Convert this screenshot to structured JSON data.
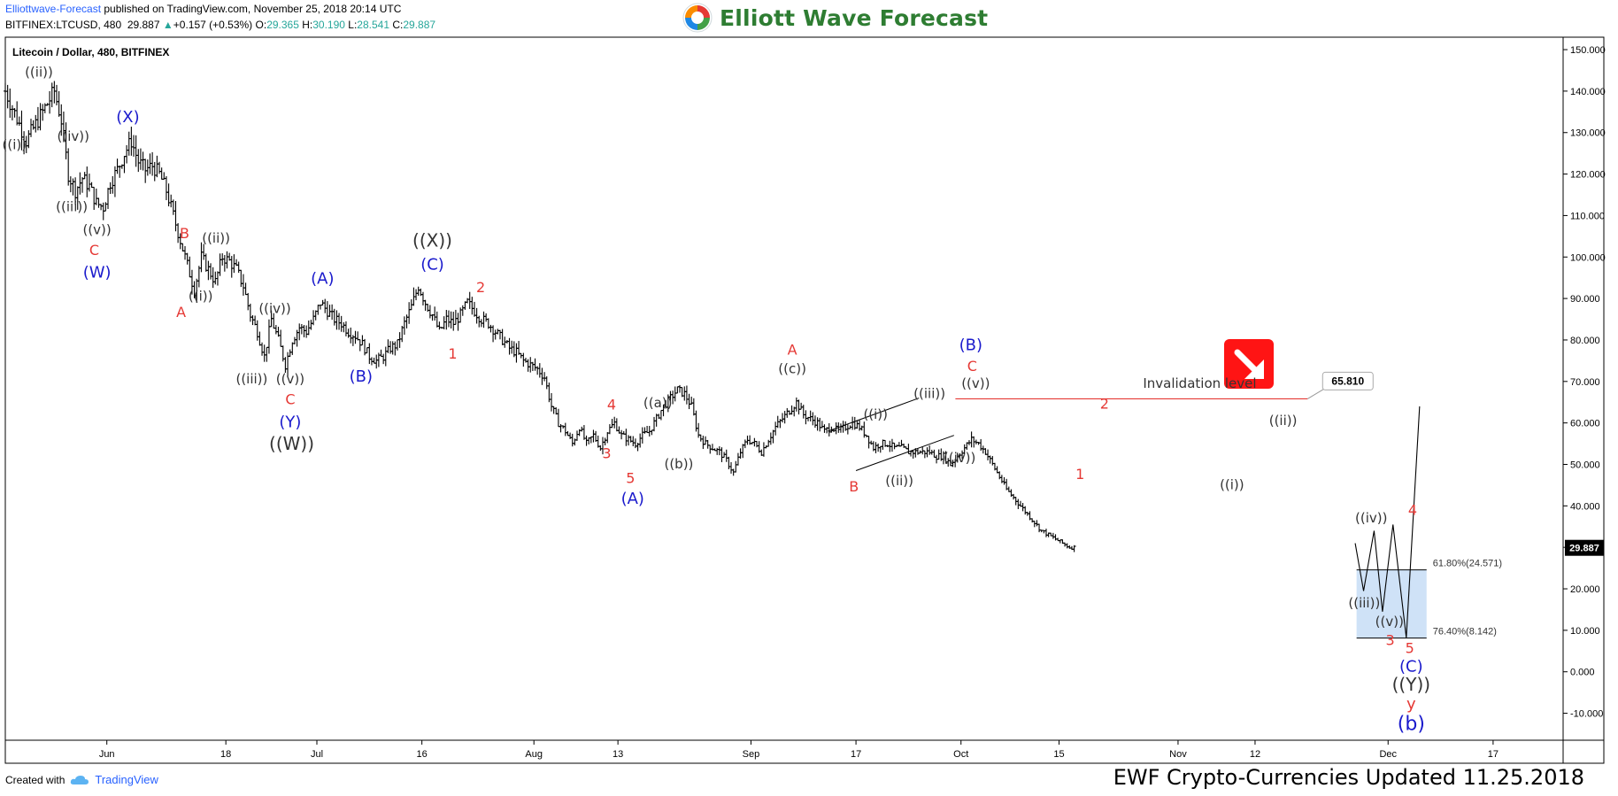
{
  "header": {
    "author": "Elliottwave-Forecast",
    "published": " published on TradingView.com, November 25, 2018 20:14 UTC",
    "symbol_line": "BITFINEX:LTCUSD, 480",
    "last": "29.887",
    "change_arrow": "▲",
    "change": "+0.157 (+0.53%)",
    "o_label": "O:",
    "o_val": "29.365",
    "h_label": "H:",
    "h_val": "30.190",
    "l_label": "L:",
    "l_val": "28.541",
    "c_label": "C:",
    "c_val": "29.887"
  },
  "logo": {
    "text": "Elliott Wave Forecast",
    "colors": [
      "#e53935",
      "#fb8c00",
      "#43a047",
      "#1e88e5"
    ]
  },
  "footer": {
    "created_with": "Created with",
    "brand": "TradingView",
    "update": "EWF Crypto-Currencies Updated 11.25.2018"
  },
  "chart_data": {
    "type": "candlestick",
    "title": "Litecoin / Dollar, 480, BITFINEX",
    "y_ticks": [
      150,
      140,
      130,
      120,
      110,
      100,
      90,
      80,
      70,
      60,
      50,
      40,
      30,
      20,
      10,
      0,
      -10
    ],
    "y_tick_labels": [
      "150.000",
      "140.000",
      "130.000",
      "120.000",
      "110.000",
      "100.000",
      "90.000",
      "80.000",
      "70.000",
      "60.000",
      "50.000",
      "40.000",
      "30.000",
      "20.000",
      "10.000",
      "0.000",
      "-10.000"
    ],
    "ylim": [
      -16.5,
      153
    ],
    "x_ticks": [
      {
        "day": 26,
        "label": "Jun"
      },
      {
        "day": 43,
        "label": "18"
      },
      {
        "day": 56,
        "label": "Jul"
      },
      {
        "day": 71,
        "label": "16"
      },
      {
        "day": 87,
        "label": "Aug"
      },
      {
        "day": 99,
        "label": "13"
      },
      {
        "day": 118,
        "label": "Sep"
      },
      {
        "day": 133,
        "label": "17"
      },
      {
        "day": 148,
        "label": "Oct"
      },
      {
        "day": 162,
        "label": "15"
      },
      {
        "day": 179,
        "label": "Nov"
      },
      {
        "day": 190,
        "label": "12"
      },
      {
        "day": 209,
        "label": "Dec"
      },
      {
        "day": 224,
        "label": "17"
      }
    ],
    "x_domain": [
      11.5,
      234
    ],
    "current_price": "29.887",
    "price_path": [
      [
        11.5,
        140
      ],
      [
        12.5,
        136
      ],
      [
        13.5,
        132
      ],
      [
        14.5,
        128
      ],
      [
        15.5,
        131
      ],
      [
        16.5,
        134
      ],
      [
        17.5,
        137
      ],
      [
        18.5,
        140
      ],
      [
        19.5,
        133
      ],
      [
        20.5,
        120
      ],
      [
        21.5,
        116
      ],
      [
        22.5,
        119
      ],
      [
        23.5,
        117
      ],
      [
        24.5,
        113
      ],
      [
        25.5,
        112
      ],
      [
        26.5,
        118
      ],
      [
        27.5,
        121
      ],
      [
        28.5,
        125
      ],
      [
        29.5,
        128
      ],
      [
        30.5,
        123
      ],
      [
        31.5,
        121
      ],
      [
        32.5,
        122
      ],
      [
        33.5,
        120
      ],
      [
        34.5,
        116
      ],
      [
        35.5,
        110
      ],
      [
        36.5,
        104
      ],
      [
        37.5,
        98
      ],
      [
        38.5,
        92
      ],
      [
        39.5,
        100
      ],
      [
        40.5,
        97
      ],
      [
        41.5,
        94
      ],
      [
        42.5,
        100
      ],
      [
        43.5,
        99
      ],
      [
        44.5,
        97
      ],
      [
        45.5,
        93
      ],
      [
        46.5,
        86
      ],
      [
        47.5,
        82
      ],
      [
        48.5,
        76
      ],
      [
        49.5,
        85
      ],
      [
        50.5,
        80
      ],
      [
        51.5,
        74
      ],
      [
        52.5,
        80
      ],
      [
        53.5,
        83
      ],
      [
        54.5,
        82
      ],
      [
        55.5,
        85
      ],
      [
        56.5,
        89
      ],
      [
        57.5,
        87
      ],
      [
        58.5,
        85
      ],
      [
        59.5,
        84
      ],
      [
        60.5,
        82
      ],
      [
        61.5,
        81
      ],
      [
        62.5,
        79
      ],
      [
        63.5,
        76
      ],
      [
        64.5,
        75
      ],
      [
        65.5,
        76
      ],
      [
        66.5,
        78
      ],
      [
        67.5,
        79
      ],
      [
        68.5,
        84
      ],
      [
        69.5,
        88
      ],
      [
        70.5,
        93
      ],
      [
        71.5,
        89
      ],
      [
        72.5,
        86
      ],
      [
        73.5,
        82
      ],
      [
        74.5,
        85
      ],
      [
        75.5,
        84
      ],
      [
        76.5,
        86
      ],
      [
        77.5,
        89
      ],
      [
        78.5,
        87
      ],
      [
        79.5,
        85
      ],
      [
        80.5,
        84
      ],
      [
        81.5,
        82
      ],
      [
        82.5,
        80
      ],
      [
        83.5,
        78
      ],
      [
        84.5,
        77
      ],
      [
        85.5,
        75
      ],
      [
        86.5,
        74
      ],
      [
        87.5,
        73
      ],
      [
        88.5,
        71
      ],
      [
        89.5,
        64
      ],
      [
        90.5,
        60
      ],
      [
        91.5,
        58
      ],
      [
        92.5,
        55
      ],
      [
        93.5,
        59
      ],
      [
        94.5,
        55
      ],
      [
        95.5,
        57
      ],
      [
        96.5,
        54
      ],
      [
        97.5,
        58
      ],
      [
        98.5,
        60
      ],
      [
        99.5,
        57
      ],
      [
        100.5,
        56
      ],
      [
        101.5,
        55
      ],
      [
        102.5,
        57
      ],
      [
        103.5,
        58
      ],
      [
        104.5,
        61
      ],
      [
        105.5,
        64
      ],
      [
        106.5,
        66
      ],
      [
        107.5,
        68
      ],
      [
        108.5,
        67
      ],
      [
        109.5,
        64
      ],
      [
        110.5,
        57
      ],
      [
        111.5,
        55
      ],
      [
        112.5,
        54
      ],
      [
        113.5,
        53
      ],
      [
        114.5,
        51
      ],
      [
        115.5,
        48
      ],
      [
        116.5,
        53
      ],
      [
        117.5,
        56
      ],
      [
        118.5,
        55
      ],
      [
        119.5,
        53
      ],
      [
        120.5,
        56
      ],
      [
        121.5,
        59
      ],
      [
        122.5,
        61
      ],
      [
        123.5,
        63
      ],
      [
        124.5,
        65
      ],
      [
        125.5,
        62
      ],
      [
        126.5,
        61
      ],
      [
        127.5,
        60
      ],
      [
        128.5,
        58
      ],
      [
        129.5,
        59
      ],
      [
        130.5,
        58
      ],
      [
        131.5,
        59
      ],
      [
        132.5,
        60
      ],
      [
        133.5,
        59
      ],
      [
        134.5,
        57
      ],
      [
        135.5,
        54
      ],
      [
        136.5,
        55
      ],
      [
        137.5,
        55
      ],
      [
        138.5,
        54
      ],
      [
        139.5,
        54
      ],
      [
        140.5,
        53
      ],
      [
        141.5,
        53
      ],
      [
        142.5,
        53
      ],
      [
        143.5,
        53
      ],
      [
        144.5,
        52
      ],
      [
        145.5,
        52
      ],
      [
        146.5,
        50
      ],
      [
        147.5,
        52
      ],
      [
        148.5,
        54
      ],
      [
        149.5,
        56
      ],
      [
        150.5,
        55
      ],
      [
        151.5,
        53
      ],
      [
        152.5,
        50
      ],
      [
        153.5,
        47
      ],
      [
        154.5,
        44
      ],
      [
        155.5,
        42
      ],
      [
        156.5,
        40
      ],
      [
        157.5,
        38
      ],
      [
        158.5,
        36
      ],
      [
        159.5,
        34
      ],
      [
        160.5,
        33
      ],
      [
        161.5,
        32
      ],
      [
        162.5,
        31
      ],
      [
        163.5,
        30
      ],
      [
        164.5,
        30
      ]
    ],
    "projection": [
      [
        204.3,
        31
      ],
      [
        205.5,
        19.5
      ],
      [
        207,
        34
      ],
      [
        208.2,
        14.5
      ],
      [
        209.7,
        35.5
      ],
      [
        211.6,
        8.2
      ],
      [
        213.5,
        64
      ]
    ],
    "target_zone": {
      "x_start": 204.5,
      "x_end": 214.5,
      "y_high": 24.571,
      "y_low": 8.142
    },
    "fib_levels": [
      {
        "value": 24.571,
        "label": "61.80%(24.571)"
      },
      {
        "value": 8.142,
        "label": "76.40%(8.142)"
      }
    ],
    "invalidation": {
      "value": 65.81,
      "label": "Invalidation level",
      "price_label": "65.810",
      "color": "#e53935"
    },
    "wedge_lines": [
      {
        "from": [
          129,
          58
        ],
        "to": [
          142,
          66
        ]
      },
      {
        "from": [
          133,
          48.5
        ],
        "to": [
          147,
          57
        ]
      }
    ],
    "wave_labels": [
      {
        "text": "((ii))",
        "x": 16.3,
        "y": 143.5,
        "color": "#333333",
        "size": 15
      },
      {
        "text": "((i))",
        "x": 12.8,
        "y": 126,
        "color": "#333333",
        "size": 15
      },
      {
        "text": "((iv))",
        "x": 21.2,
        "y": 128,
        "color": "#333333",
        "size": 15
      },
      {
        "text": "(X)",
        "x": 29,
        "y": 132.5,
        "color": "#1a1acc",
        "size": 18
      },
      {
        "text": "((iii))",
        "x": 21,
        "y": 111,
        "color": "#333333",
        "size": 15
      },
      {
        "text": "((v))",
        "x": 24.6,
        "y": 105.5,
        "color": "#333333",
        "size": 15
      },
      {
        "text": "C",
        "x": 24.2,
        "y": 100.5,
        "color": "#e53935",
        "size": 16
      },
      {
        "text": "(W)",
        "x": 24.6,
        "y": 95,
        "color": "#1a1acc",
        "size": 18
      },
      {
        "text": "B",
        "x": 37.1,
        "y": 104.5,
        "color": "#e53935",
        "size": 16
      },
      {
        "text": "((ii))",
        "x": 41.6,
        "y": 103.5,
        "color": "#333333",
        "size": 15
      },
      {
        "text": "A",
        "x": 36.6,
        "y": 85.5,
        "color": "#e53935",
        "size": 16
      },
      {
        "text": "((i))",
        "x": 39.4,
        "y": 89.5,
        "color": "#333333",
        "size": 15
      },
      {
        "text": "((iv))",
        "x": 50,
        "y": 86.5,
        "color": "#333333",
        "size": 15
      },
      {
        "text": "(A)",
        "x": 56.8,
        "y": 93.5,
        "color": "#1a1acc",
        "size": 18
      },
      {
        "text": "((iii))",
        "x": 46.7,
        "y": 69.5,
        "color": "#333333",
        "size": 15
      },
      {
        "text": "((v))",
        "x": 52.2,
        "y": 69.5,
        "color": "#333333",
        "size": 15
      },
      {
        "text": "C",
        "x": 52.2,
        "y": 64.5,
        "color": "#e53935",
        "size": 16
      },
      {
        "text": "(Y)",
        "x": 52.2,
        "y": 59,
        "color": "#1a1acc",
        "size": 18
      },
      {
        "text": "((W))",
        "x": 52.4,
        "y": 53.5,
        "color": "#333333",
        "size": 20
      },
      {
        "text": "(B)",
        "x": 62.3,
        "y": 70,
        "color": "#1a1acc",
        "size": 18
      },
      {
        "text": "((X))",
        "x": 72.5,
        "y": 102.5,
        "color": "#333333",
        "size": 20
      },
      {
        "text": "(C)",
        "x": 72.5,
        "y": 97,
        "color": "#1a1acc",
        "size": 18
      },
      {
        "text": "2",
        "x": 79.4,
        "y": 91.5,
        "color": "#e53935",
        "size": 16
      },
      {
        "text": "1",
        "x": 75.4,
        "y": 75.5,
        "color": "#e53935",
        "size": 16
      },
      {
        "text": "4",
        "x": 98.1,
        "y": 63.2,
        "color": "#e53935",
        "size": 16
      },
      {
        "text": "((a))",
        "x": 104.7,
        "y": 63.8,
        "color": "#333333",
        "size": 15
      },
      {
        "text": "3",
        "x": 97.4,
        "y": 51.5,
        "color": "#e53935",
        "size": 16
      },
      {
        "text": "((b))",
        "x": 107.7,
        "y": 49,
        "color": "#333333",
        "size": 15
      },
      {
        "text": "5",
        "x": 100.8,
        "y": 45.5,
        "color": "#e53935",
        "size": 16
      },
      {
        "text": "(A)",
        "x": 101.1,
        "y": 40.5,
        "color": "#1a1acc",
        "size": 18
      },
      {
        "text": "A",
        "x": 123.9,
        "y": 76.5,
        "color": "#e53935",
        "size": 16
      },
      {
        "text": "((c))",
        "x": 123.9,
        "y": 72,
        "color": "#333333",
        "size": 15
      },
      {
        "text": "(B)",
        "x": 149.4,
        "y": 77.5,
        "color": "#1a1acc",
        "size": 18
      },
      {
        "text": "C",
        "x": 149.6,
        "y": 72.5,
        "color": "#e53935",
        "size": 16
      },
      {
        "text": "((v))",
        "x": 150.1,
        "y": 68.5,
        "color": "#333333",
        "size": 15
      },
      {
        "text": "((iii))",
        "x": 143.5,
        "y": 66,
        "color": "#333333",
        "size": 15
      },
      {
        "text": "((i))",
        "x": 135.8,
        "y": 61,
        "color": "#333333",
        "size": 15
      },
      {
        "text": "((ii))",
        "x": 139.2,
        "y": 45,
        "color": "#333333",
        "size": 15
      },
      {
        "text": "((iv))",
        "x": 147.8,
        "y": 50.5,
        "color": "#333333",
        "size": 15
      },
      {
        "text": "B",
        "x": 132.7,
        "y": 43.5,
        "color": "#e53935",
        "size": 16
      },
      {
        "text": "Invalidation level",
        "x": 182.1,
        "y": 68.5,
        "color": "#333333",
        "size": 15
      },
      {
        "text": "2",
        "x": 168.5,
        "y": 63.5,
        "color": "#e53935",
        "size": 16
      },
      {
        "text": "1",
        "x": 165,
        "y": 46.5,
        "color": "#e53935",
        "size": 16
      },
      {
        "text": "((ii))",
        "x": 194,
        "y": 59.5,
        "color": "#333333",
        "size": 15
      },
      {
        "text": "((i))",
        "x": 186.7,
        "y": 44,
        "color": "#333333",
        "size": 15
      },
      {
        "text": "((iv))",
        "x": 206.6,
        "y": 36,
        "color": "#333333",
        "size": 15
      },
      {
        "text": "4",
        "x": 212.5,
        "y": 37.8,
        "color": "#e53935",
        "size": 16
      },
      {
        "text": "((iii))",
        "x": 205.6,
        "y": 15.5,
        "color": "#333333",
        "size": 15
      },
      {
        "text": "((v))",
        "x": 209.2,
        "y": 11,
        "color": "#333333",
        "size": 15
      },
      {
        "text": "3",
        "x": 209.3,
        "y": 6.5,
        "color": "#e53935",
        "size": 16
      },
      {
        "text": "5",
        "x": 212.1,
        "y": 4.5,
        "color": "#e53935",
        "size": 16
      },
      {
        "text": "(C)",
        "x": 212.3,
        "y": 0,
        "color": "#1a1acc",
        "size": 18
      },
      {
        "text": "((Y))",
        "x": 212.3,
        "y": -4.5,
        "color": "#333333",
        "size": 20
      },
      {
        "text": "y",
        "x": 212.3,
        "y": -9,
        "color": "#e53935",
        "size": 18
      },
      {
        "text": "(b)",
        "x": 212.3,
        "y": -14,
        "color": "#1a1acc",
        "size": 22
      }
    ]
  }
}
